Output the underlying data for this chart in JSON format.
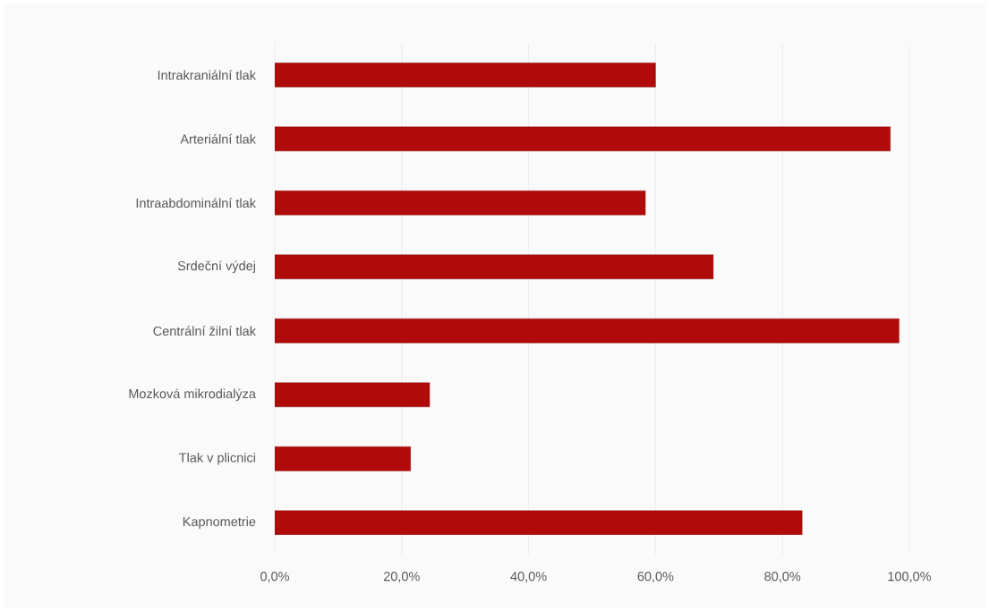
{
  "chart_data": {
    "type": "bar",
    "orientation": "horizontal",
    "categories": [
      "Intrakraniální tlak",
      "Arteriální tlak",
      "Intraabdominální tlak",
      "Srdeční výdej",
      "Centrální žilní tlak",
      "Mozková mikrodialýza",
      "Tlak v plicnici",
      "Kapnometrie"
    ],
    "values": [
      60,
      97,
      58.4,
      69.1,
      98.4,
      24.4,
      21.4,
      83.1
    ],
    "color": "#b00a0a",
    "xlim": [
      0,
      100
    ],
    "xticks": [
      {
        "value": 0,
        "label": "0,0%"
      },
      {
        "value": 20,
        "label": "20,0%"
      },
      {
        "value": 40,
        "label": "40,0%"
      },
      {
        "value": 60,
        "label": "60,0%"
      },
      {
        "value": 80,
        "label": "80,0%"
      },
      {
        "value": 100,
        "label": "100,0%"
      }
    ],
    "grid": "x"
  }
}
